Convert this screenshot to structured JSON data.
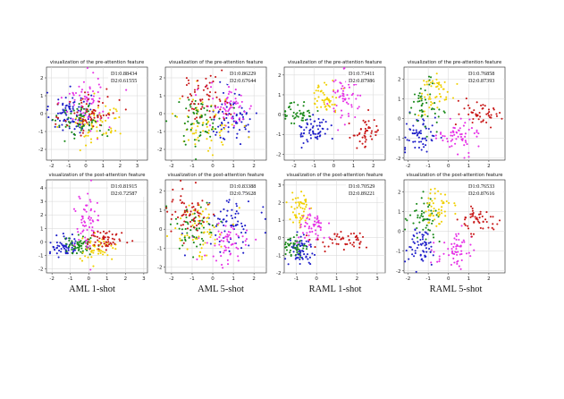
{
  "figure": {
    "captions": [
      "AML 1-shot",
      "AML 5-shot",
      "RAML 1-shot",
      "RAML 5-shot"
    ]
  },
  "chart_data": [
    {
      "type": "scatter",
      "title": "visualization of the pre-attention feature",
      "metrics": [
        "D1:0.88434",
        "D2:0.61555"
      ],
      "xlim": [
        -2.3,
        3.6
      ],
      "ylim": [
        -2.6,
        2.6
      ],
      "xticks": [
        -2,
        -1,
        0,
        1,
        2,
        3
      ],
      "yticks": [
        -2,
        -1,
        0,
        1,
        2
      ],
      "grid": true,
      "series": [
        {
          "color": "#1f1fc9",
          "cx": -0.9,
          "cy": 0.0,
          "sx": 0.6,
          "sy": 0.6,
          "n": 90
        },
        {
          "color": "#e632e6",
          "cx": 0.1,
          "cy": 0.7,
          "sx": 0.7,
          "sy": 0.8,
          "n": 70
        },
        {
          "color": "#f0d000",
          "cx": 0.6,
          "cy": -0.5,
          "sx": 0.8,
          "sy": 0.6,
          "n": 60
        },
        {
          "color": "#1a8a1a",
          "cx": -0.2,
          "cy": -0.4,
          "sx": 0.7,
          "sy": 0.5,
          "n": 60
        },
        {
          "color": "#c81818",
          "cx": 0.3,
          "cy": 0.0,
          "sx": 0.8,
          "sy": 0.7,
          "n": 60
        }
      ]
    },
    {
      "type": "scatter",
      "title": "visualization of the pre-attention feature",
      "metrics": [
        "D1:0.86229",
        "D2:0.67644"
      ],
      "xlim": [
        -2.3,
        2.6
      ],
      "ylim": [
        -2.6,
        2.6
      ],
      "xticks": [
        -2,
        -1,
        0,
        1,
        2
      ],
      "yticks": [
        -2,
        -1,
        0,
        1,
        2
      ],
      "grid": true,
      "series": [
        {
          "color": "#1f1fc9",
          "cx": 1.0,
          "cy": -0.2,
          "sx": 0.6,
          "sy": 0.7,
          "n": 70
        },
        {
          "color": "#e632e6",
          "cx": 0.8,
          "cy": 0.4,
          "sx": 0.6,
          "sy": 0.6,
          "n": 60
        },
        {
          "color": "#f0d000",
          "cx": -0.3,
          "cy": -0.6,
          "sx": 0.7,
          "sy": 0.8,
          "n": 60
        },
        {
          "color": "#1a8a1a",
          "cx": -0.7,
          "cy": -0.4,
          "sx": 0.6,
          "sy": 0.7,
          "n": 60
        },
        {
          "color": "#c81818",
          "cx": -0.4,
          "cy": 0.9,
          "sx": 0.6,
          "sy": 0.6,
          "n": 60
        }
      ]
    },
    {
      "type": "scatter",
      "title": "visualization of the pre-attention feature",
      "metrics": [
        "D1:0.73411",
        "D2:0.87986"
      ],
      "xlim": [
        -2.5,
        2.6
      ],
      "ylim": [
        -2.3,
        2.4
      ],
      "xticks": [
        -2,
        -1,
        0,
        1,
        2
      ],
      "yticks": [
        -2,
        -1,
        0,
        1,
        2
      ],
      "grid": true,
      "series": [
        {
          "color": "#1f1fc9",
          "cx": -1.0,
          "cy": -0.8,
          "sx": 0.4,
          "sy": 0.35,
          "n": 60
        },
        {
          "color": "#1a8a1a",
          "cx": -1.8,
          "cy": 0.1,
          "sx": 0.35,
          "sy": 0.3,
          "n": 45
        },
        {
          "color": "#f0d000",
          "cx": -0.4,
          "cy": 0.9,
          "sx": 0.4,
          "sy": 0.4,
          "n": 50
        },
        {
          "color": "#e632e6",
          "cx": 0.6,
          "cy": 0.9,
          "sx": 0.4,
          "sy": 0.6,
          "n": 60
        },
        {
          "color": "#c81818",
          "cx": 1.6,
          "cy": -0.9,
          "sx": 0.4,
          "sy": 0.4,
          "n": 45
        }
      ]
    },
    {
      "type": "scatter",
      "title": "visualization of the pre-attention feature",
      "metrics": [
        "D1:0.76858",
        "D2:0.87393"
      ],
      "xlim": [
        -2.2,
        2.8
      ],
      "ylim": [
        -2.1,
        2.6
      ],
      "xticks": [
        -2,
        -1,
        0,
        1,
        2
      ],
      "yticks": [
        -2,
        -1,
        0,
        1,
        2
      ],
      "grid": true,
      "series": [
        {
          "color": "#1f1fc9",
          "cx": -1.4,
          "cy": -0.9,
          "sx": 0.4,
          "sy": 0.5,
          "n": 60
        },
        {
          "color": "#1a8a1a",
          "cx": -1.2,
          "cy": 0.7,
          "sx": 0.35,
          "sy": 0.6,
          "n": 50
        },
        {
          "color": "#f0d000",
          "cx": -0.6,
          "cy": 1.3,
          "sx": 0.4,
          "sy": 0.5,
          "n": 50
        },
        {
          "color": "#e632e6",
          "cx": 0.5,
          "cy": -0.9,
          "sx": 0.5,
          "sy": 0.4,
          "n": 60
        },
        {
          "color": "#c81818",
          "cx": 1.6,
          "cy": 0.3,
          "sx": 0.5,
          "sy": 0.35,
          "n": 50
        }
      ]
    },
    {
      "type": "scatter",
      "title": "visualization of the post-attention feature",
      "metrics": [
        "D1:0.81915",
        "D2:0.72587"
      ],
      "xlim": [
        -2.3,
        3.2
      ],
      "ylim": [
        -2.3,
        4.6
      ],
      "xticks": [
        -2,
        -1,
        0,
        1,
        2,
        3
      ],
      "yticks": [
        -2,
        -1,
        0,
        1,
        2,
        3,
        4
      ],
      "grid": true,
      "series": [
        {
          "color": "#1f1fc9",
          "cx": -1.3,
          "cy": -0.3,
          "sx": 0.4,
          "sy": 0.35,
          "n": 60
        },
        {
          "color": "#1a8a1a",
          "cx": -0.5,
          "cy": -0.3,
          "sx": 0.4,
          "sy": 0.35,
          "n": 55
        },
        {
          "color": "#f0d000",
          "cx": 0.5,
          "cy": -0.6,
          "sx": 0.5,
          "sy": 0.4,
          "n": 50
        },
        {
          "color": "#e632e6",
          "cx": -0.1,
          "cy": 1.3,
          "sx": 0.35,
          "sy": 1.1,
          "n": 60
        },
        {
          "color": "#c81818",
          "cx": 0.9,
          "cy": 0.2,
          "sx": 0.6,
          "sy": 0.35,
          "n": 55
        }
      ]
    },
    {
      "type": "scatter",
      "title": "visualization of the post-attention feature",
      "metrics": [
        "D1:0.83388",
        "D2:0.75628"
      ],
      "xlim": [
        -2.3,
        2.6
      ],
      "ylim": [
        -2.3,
        2.6
      ],
      "xticks": [
        -2,
        -1,
        0,
        1,
        2
      ],
      "yticks": [
        -2,
        -1,
        0,
        1,
        2
      ],
      "grid": true,
      "series": [
        {
          "color": "#1f1fc9",
          "cx": 1.0,
          "cy": 0.3,
          "sx": 0.6,
          "sy": 0.6,
          "n": 70
        },
        {
          "color": "#e632e6",
          "cx": 0.6,
          "cy": -0.8,
          "sx": 0.6,
          "sy": 0.6,
          "n": 60
        },
        {
          "color": "#f0d000",
          "cx": -0.6,
          "cy": 0.0,
          "sx": 0.6,
          "sy": 0.8,
          "n": 60
        },
        {
          "color": "#1a8a1a",
          "cx": -1.0,
          "cy": 0.1,
          "sx": 0.6,
          "sy": 0.7,
          "n": 55
        },
        {
          "color": "#c81818",
          "cx": -1.2,
          "cy": 0.8,
          "sx": 0.6,
          "sy": 0.7,
          "n": 60
        }
      ]
    },
    {
      "type": "scatter",
      "title": "visualization of the post-attention feature",
      "metrics": [
        "D1:0.70529",
        "D2:0.89221"
      ],
      "xlim": [
        -1.6,
        3.4
      ],
      "ylim": [
        -2.0,
        3.3
      ],
      "xticks": [
        -1,
        0,
        1,
        2,
        3
      ],
      "yticks": [
        -2,
        -1,
        0,
        1,
        2,
        3
      ],
      "grid": true,
      "series": [
        {
          "color": "#1f1fc9",
          "cx": -0.8,
          "cy": -0.7,
          "sx": 0.3,
          "sy": 0.5,
          "n": 60
        },
        {
          "color": "#1a8a1a",
          "cx": -1.1,
          "cy": -0.6,
          "sx": 0.3,
          "sy": 0.35,
          "n": 45
        },
        {
          "color": "#f0d000",
          "cx": -0.8,
          "cy": 1.6,
          "sx": 0.3,
          "sy": 0.6,
          "n": 50
        },
        {
          "color": "#e632e6",
          "cx": -0.3,
          "cy": 0.6,
          "sx": 0.35,
          "sy": 0.5,
          "n": 55
        },
        {
          "color": "#c81818",
          "cx": 1.4,
          "cy": -0.2,
          "sx": 0.7,
          "sy": 0.25,
          "n": 50
        }
      ]
    },
    {
      "type": "scatter",
      "title": "visualization of the post-attention feature",
      "metrics": [
        "D1:0.76533",
        "D2:0.87616"
      ],
      "xlim": [
        -2.2,
        2.8
      ],
      "ylim": [
        -2.1,
        2.6
      ],
      "xticks": [
        -2,
        -1,
        0,
        1,
        2
      ],
      "yticks": [
        -2,
        -1,
        0,
        1,
        2
      ],
      "grid": true,
      "series": [
        {
          "color": "#1f1fc9",
          "cx": -1.4,
          "cy": -0.7,
          "sx": 0.4,
          "sy": 0.5,
          "n": 60
        },
        {
          "color": "#1a8a1a",
          "cx": -1.2,
          "cy": 0.6,
          "sx": 0.35,
          "sy": 0.5,
          "n": 50
        },
        {
          "color": "#f0d000",
          "cx": -0.6,
          "cy": 1.2,
          "sx": 0.4,
          "sy": 0.5,
          "n": 50
        },
        {
          "color": "#e632e6",
          "cx": 0.4,
          "cy": -1.0,
          "sx": 0.5,
          "sy": 0.45,
          "n": 60
        },
        {
          "color": "#c81818",
          "cx": 1.6,
          "cy": 0.5,
          "sx": 0.5,
          "sy": 0.35,
          "n": 50
        }
      ]
    }
  ]
}
